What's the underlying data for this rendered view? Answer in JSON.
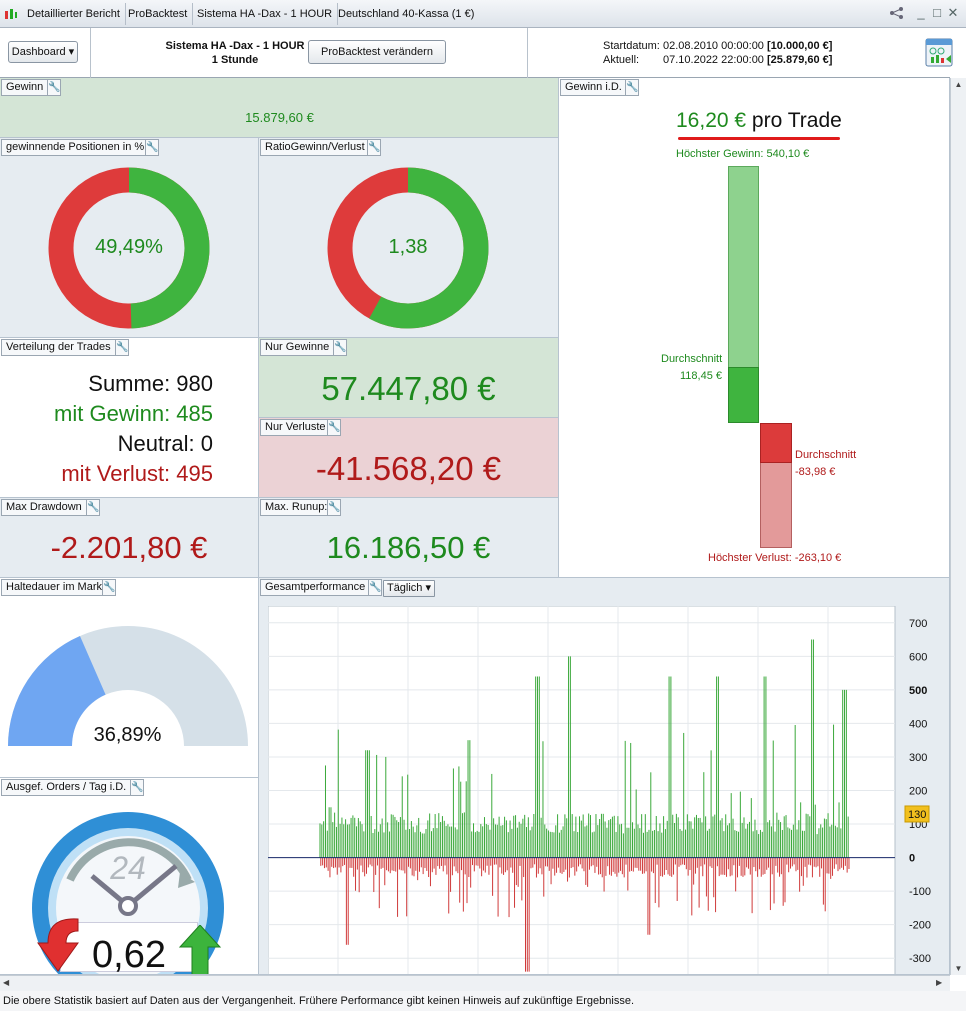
{
  "titlebar": {
    "tabs": [
      "Detaillierter Bericht",
      "ProBacktest",
      "Sistema HA -Dax - 1 HOUR",
      "Deutschland 40-Kassa (1 €)"
    ]
  },
  "header": {
    "dashboard_label": "Dashboard",
    "system_name": "Sistema HA -Dax - 1 HOUR",
    "timeframe": "1 Stunde",
    "change_button": "ProBacktest verändern",
    "start_label": "Startdatum:",
    "start_date": "02.08.2010 00:00:00",
    "start_capital": "[10.000,00 €]",
    "current_label": "Aktuell:",
    "current_date": "07.10.2022 22:00:00",
    "current_capital": "[25.879,60 €]"
  },
  "gewinn": {
    "label": "Gewinn",
    "value": "15.879,60 €"
  },
  "win_pct": {
    "label": "gewinnende Positionen in %",
    "value": "49,49%",
    "fraction": 0.4949
  },
  "ratio": {
    "label": "RatioGewinn/Verlust",
    "value": "1,38",
    "fraction": 0.58
  },
  "verteilung": {
    "label": "Verteilung der Trades",
    "summe": "Summe: 980",
    "gewinn": "mit Gewinn: 485",
    "neutral": "Neutral: 0",
    "verlust": "mit Verlust: 495"
  },
  "nur_gewinne": {
    "label": "Nur Gewinne",
    "value": "57.447,80 €"
  },
  "nur_verluste": {
    "label": "Nur Verluste",
    "value": "-41.568,20 €"
  },
  "max_drawdown": {
    "label": "Max Drawdown",
    "value": "-2.201,80 €"
  },
  "max_runup": {
    "label": "Max. Runup:",
    "value": "16.186,50 €"
  },
  "gewinn_id": {
    "label": "Gewinn i.D.",
    "per_trade_value": "16,20 €",
    "per_trade_suffix": "pro Trade",
    "max_gain": "Höchster Gewinn: 540,10 €",
    "avg_gain_label": "Durchschnitt",
    "avg_gain": "118,45 €",
    "avg_loss_label": "Durchschnitt",
    "avg_loss": "-83,98 €",
    "max_loss": "Höchster Verlust: -263,10 €",
    "max_gain_value": 540.1,
    "avg_gain_value": 118.45,
    "avg_loss_value": -83.98,
    "max_loss_value": -263.1
  },
  "haltedauer": {
    "label": "Haltedauer im Markt",
    "value": "36,89%",
    "fraction": 0.3689
  },
  "orders": {
    "label": "Ausgef. Orders / Tag i.D.",
    "clock_number": "24",
    "value": "0,62"
  },
  "gesamt": {
    "label": "Gesamtperformance",
    "period": "Täglich",
    "current_marker": "130"
  },
  "chart_data": {
    "type": "bar",
    "title": "Gesamtperformance",
    "ylim": [
      -350,
      750
    ],
    "yticks": [
      "700",
      "600",
      "500",
      "400",
      "300",
      "200",
      "100",
      "0",
      "-100",
      "-200",
      "-300"
    ],
    "ytick_values": [
      700,
      600,
      500,
      400,
      300,
      200,
      100,
      0,
      -100,
      -200,
      -300
    ],
    "current_value": 130,
    "colors": {
      "positive": "#3aa83a",
      "negative": "#d03a3a"
    },
    "approx_bar_count": 290,
    "sample_peaks": [
      {
        "x_frac": 0.02,
        "y": 150
      },
      {
        "x_frac": 0.09,
        "y": 320
      },
      {
        "x_frac": 0.28,
        "y": 350
      },
      {
        "x_frac": 0.41,
        "y": 540
      },
      {
        "x_frac": 0.47,
        "y": 600
      },
      {
        "x_frac": 0.66,
        "y": 540
      },
      {
        "x_frac": 0.75,
        "y": 540
      },
      {
        "x_frac": 0.84,
        "y": 540
      },
      {
        "x_frac": 0.93,
        "y": 650
      },
      {
        "x_frac": 0.99,
        "y": 500
      }
    ],
    "sample_troughs": [
      {
        "x_frac": 0.05,
        "y": -260
      },
      {
        "x_frac": 0.39,
        "y": -340
      },
      {
        "x_frac": 0.62,
        "y": -230
      }
    ]
  },
  "footer": "Die obere Statistik basiert auf Daten aus der Vergangenheit. Frühere Performance gibt keinen Hinweis auf zukünftige Ergebnisse."
}
